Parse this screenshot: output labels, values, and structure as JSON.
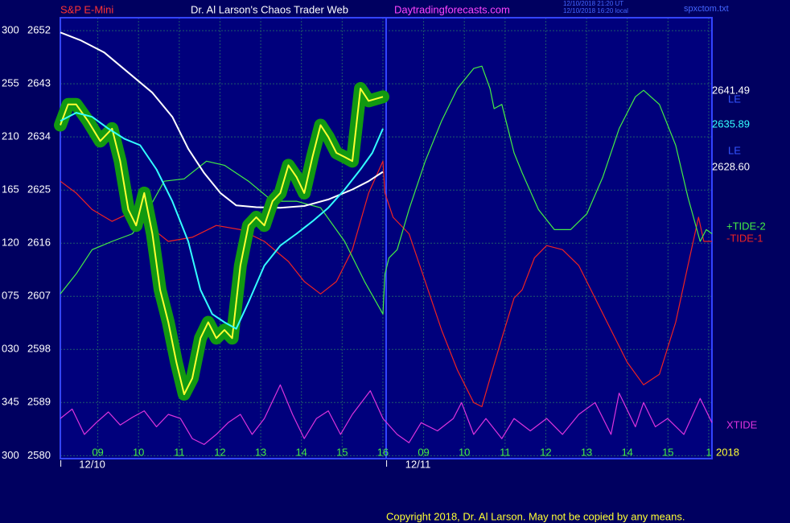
{
  "chart_data": {
    "type": "line",
    "header": {
      "left": "S&P E-Mini",
      "title": "Dr. Al Larson's Chaos Trader Web",
      "site": "Daytradingforecasts.com",
      "stamps": [
        "12/10/2018 21:20 UT",
        "12/10/2018 16:20 local"
      ],
      "file": "spxctom.txt"
    },
    "ylim": [
      2579.5,
      2654.2
    ],
    "yticks": [
      2652,
      2643,
      2634,
      2625,
      2616,
      2607,
      2598,
      2589,
      2580
    ],
    "y_angle_labels": [
      "300",
      "255",
      "210",
      "165",
      "120",
      "075",
      "030",
      "345",
      "300"
    ],
    "xlim": [
      8.08,
      24.08
    ],
    "xticks": [
      {
        "value": 9,
        "label": "09"
      },
      10,
      11,
      12,
      13,
      14,
      15,
      16,
      {
        "value": 17,
        "label": "09"
      },
      {
        "value": 18,
        "label": "10"
      },
      {
        "value": 19,
        "label": "11"
      },
      {
        "value": 20,
        "label": "12"
      },
      {
        "value": 21,
        "label": "13"
      },
      {
        "value": 22,
        "label": "14"
      },
      {
        "value": 23,
        "label": "15"
      },
      {
        "value": 24,
        "label": "1"
      }
    ],
    "dates": [
      {
        "value": 9,
        "label": "12/10"
      },
      {
        "value": 17,
        "label": "12/11"
      }
    ],
    "grid": true,
    "series": [
      {
        "color": "#ffffff",
        "x": [
          8.08,
          8.57,
          9.16,
          9.75,
          10.34,
          10.83,
          11.22,
          11.61,
          12.01,
          12.4,
          12.89,
          13.48,
          14.07,
          14.66,
          15.25,
          15.65,
          16.0
        ],
        "values": [
          2651.7,
          2650.4,
          2648.3,
          2644.9,
          2641.5,
          2637.4,
          2632.0,
          2627.9,
          2624.5,
          2622.4,
          2622.1,
          2622.0,
          2622.3,
          2623.4,
          2625.1,
          2626.5,
          2628.1
        ]
      },
      {
        "color": "#33ffff",
        "x": [
          8.08,
          8.47,
          8.86,
          9.26,
          9.65,
          10.04,
          10.44,
          10.83,
          11.22,
          11.52,
          11.81,
          12.11,
          12.4,
          12.7,
          13.09,
          13.48,
          13.88,
          14.27,
          14.66,
          15.06,
          15.45,
          15.74,
          16.0
        ],
        "values": [
          2636.7,
          2638.1,
          2637.4,
          2635.4,
          2633.7,
          2632.6,
          2628.5,
          2623.1,
          2616.3,
          2608.1,
          2604.0,
          2602.6,
          2601.5,
          2606.0,
          2612.2,
          2615.6,
          2617.6,
          2619.7,
          2622.0,
          2625.1,
          2628.5,
          2631.3,
          2635.4
        ]
      },
      {
        "color": "#ffff33",
        "halo": "#119911",
        "x": [
          8.08,
          8.27,
          8.47,
          8.76,
          9.06,
          9.35,
          9.55,
          9.75,
          9.94,
          10.14,
          10.34,
          10.53,
          10.73,
          10.93,
          11.12,
          11.32,
          11.52,
          11.71,
          11.91,
          12.11,
          12.3,
          12.5,
          12.7,
          12.89,
          13.09,
          13.29,
          13.48,
          13.68,
          13.88,
          14.07,
          14.27,
          14.47,
          14.66,
          14.86,
          15.06,
          15.25,
          15.45,
          15.65,
          16.0
        ],
        "values": [
          2636.0,
          2639.5,
          2639.5,
          2636.7,
          2633.3,
          2635.4,
          2629.9,
          2621.7,
          2619.0,
          2624.5,
          2617.6,
          2608.1,
          2602.6,
          2595.8,
          2590.4,
          2593.1,
          2599.9,
          2602.6,
          2599.9,
          2601.3,
          2599.9,
          2612.2,
          2619.0,
          2620.4,
          2619.0,
          2623.1,
          2624.5,
          2629.2,
          2627.2,
          2624.5,
          2630.6,
          2636.0,
          2634.0,
          2631.3,
          2630.6,
          2629.9,
          2642.2,
          2640.1,
          2640.8
        ]
      },
      {
        "name": "+TIDE-2",
        "color": "#44ee44",
        "x": [
          8.08,
          8.47,
          8.86,
          9.35,
          9.85,
          10.24,
          10.63,
          11.12,
          11.67,
          12.11,
          12.7,
          13.29,
          13.88,
          14.47,
          15.06,
          15.55,
          16.0,
          16.05,
          16.15,
          16.35,
          16.64,
          17.04,
          17.44,
          17.83,
          18.23,
          18.43,
          18.63,
          18.73,
          18.92,
          19.22,
          19.42,
          19.82,
          20.21,
          20.61,
          21.01,
          21.4,
          21.8,
          22.2,
          22.4,
          22.79,
          23.19,
          23.49,
          23.79,
          23.94,
          24.08
        ],
        "values": [
          2607.4,
          2610.8,
          2614.9,
          2616.3,
          2617.6,
          2621.7,
          2626.5,
          2626.9,
          2629.9,
          2629.2,
          2626.5,
          2623.1,
          2623.1,
          2622.0,
          2616.3,
          2609.5,
          2604.0,
          2610.8,
          2613.5,
          2614.9,
          2621.7,
          2629.9,
          2636.7,
          2642.2,
          2645.6,
          2646.0,
          2642.2,
          2638.8,
          2639.5,
          2631.3,
          2627.9,
          2621.7,
          2618.3,
          2618.3,
          2621.0,
          2627.2,
          2635.4,
          2640.8,
          2641.9,
          2639.5,
          2632.6,
          2623.8,
          2616.3,
          2618.3,
          2617.6
        ]
      },
      {
        "name": "-TIDE-1",
        "color": "#ee2222",
        "x": [
          8.08,
          8.47,
          8.86,
          9.35,
          9.75,
          10.24,
          10.73,
          11.32,
          11.91,
          12.5,
          13.09,
          13.68,
          14.07,
          14.47,
          14.86,
          15.25,
          15.65,
          16.0,
          16.05,
          16.25,
          16.64,
          17.04,
          17.44,
          17.83,
          18.23,
          18.43,
          18.63,
          18.92,
          19.22,
          19.42,
          19.72,
          20.02,
          20.41,
          20.81,
          21.21,
          21.6,
          22.0,
          22.4,
          22.79,
          23.19,
          23.49,
          23.75,
          23.88,
          24.08
        ],
        "values": [
          2626.5,
          2624.5,
          2621.7,
          2619.7,
          2621.0,
          2619.0,
          2616.3,
          2617.0,
          2619.0,
          2618.3,
          2616.3,
          2612.9,
          2609.5,
          2607.4,
          2609.5,
          2614.9,
          2624.5,
          2629.9,
          2624.5,
          2620.4,
          2617.6,
          2609.5,
          2601.3,
          2594.5,
          2589.0,
          2588.3,
          2593.1,
          2599.9,
          2606.7,
          2608.1,
          2613.5,
          2615.6,
          2614.9,
          2612.2,
          2606.7,
          2601.3,
          2595.8,
          2592.0,
          2593.8,
          2602.6,
          2612.2,
          2620.4,
          2616.3,
          2616.3
        ]
      },
      {
        "name": "XTIDE",
        "color": "#dd33dd",
        "x": [
          8.08,
          8.37,
          8.67,
          8.96,
          9.26,
          9.55,
          9.85,
          10.14,
          10.44,
          10.73,
          11.03,
          11.32,
          11.61,
          11.91,
          12.2,
          12.5,
          12.79,
          13.09,
          13.48,
          13.78,
          14.07,
          14.37,
          14.66,
          14.96,
          15.25,
          15.69,
          16.0,
          16.35,
          16.64,
          16.94,
          17.34,
          17.73,
          17.93,
          18.23,
          18.53,
          18.92,
          19.22,
          19.62,
          20.02,
          20.41,
          20.81,
          21.21,
          21.6,
          21.8,
          22.2,
          22.4,
          22.69,
          22.99,
          23.39,
          23.79,
          24.08
        ],
        "values": [
          2586.3,
          2587.9,
          2583.6,
          2585.6,
          2587.4,
          2585.2,
          2586.5,
          2587.6,
          2584.9,
          2587.0,
          2586.3,
          2582.9,
          2581.9,
          2583.6,
          2585.6,
          2587.0,
          2583.6,
          2586.3,
          2592.0,
          2587.0,
          2582.9,
          2586.3,
          2587.6,
          2583.6,
          2587.0,
          2591.0,
          2586.3,
          2583.6,
          2582.2,
          2585.6,
          2584.2,
          2586.3,
          2589.0,
          2583.6,
          2586.3,
          2582.9,
          2586.3,
          2584.2,
          2586.3,
          2583.6,
          2587.0,
          2589.0,
          2583.6,
          2590.6,
          2584.9,
          2589.0,
          2584.9,
          2586.3,
          2583.6,
          2589.7,
          2585.6
        ]
      }
    ],
    "right_labels": [
      "2641.49",
      "LE",
      "2635.89",
      "LE",
      "2628.60"
    ],
    "year": "2018",
    "copyright": "Copyright 2018, Dr. Al Larson. May not be copied by any means."
  }
}
